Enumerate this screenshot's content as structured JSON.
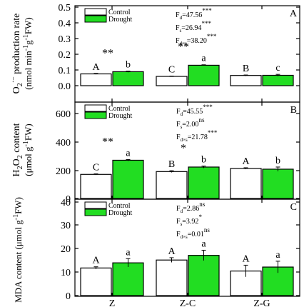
{
  "colors": {
    "control": "#ffffff",
    "drought": "#22dd22",
    "axis": "#000000"
  },
  "chart_data": [
    {
      "type": "bar",
      "panel_label": "A",
      "categories": [
        "Z",
        "Z-C",
        "Z-G"
      ],
      "ylim": [
        0,
        0.5
      ],
      "yticks": [
        "0.0",
        "0.1",
        "0.2",
        "0.3",
        "0.4",
        "0.5"
      ],
      "ylabel": [
        "O",
        "2",
        "·−",
        " production rate",
        "(nmol min",
        "-1",
        "g",
        "-1",
        "FW)"
      ],
      "series": [
        {
          "name": "Control",
          "values": [
            0.075,
            0.059,
            0.065
          ],
          "errors": [
            0.003,
            0.002,
            0.003
          ],
          "letters": [
            "A",
            "C",
            "B"
          ]
        },
        {
          "name": "Drought",
          "values": [
            0.089,
            0.13,
            0.066
          ],
          "errors": [
            0.004,
            0.003,
            0.006
          ],
          "letters": [
            "b",
            "a",
            "c"
          ]
        }
      ],
      "significance": [
        "**",
        "**",
        ""
      ],
      "stats": [
        {
          "sym": "F",
          "sub": "d",
          "val": "=47.56",
          "sig": "***"
        },
        {
          "sym": "F",
          "sub": "s",
          "val": "=26.94",
          "sig": "***"
        },
        {
          "sym": "F",
          "sub": "d×s",
          "val": "=38.20",
          "sig": "***"
        }
      ]
    },
    {
      "type": "bar",
      "panel_label": "B",
      "categories": [
        "Z",
        "Z-C",
        "Z-G"
      ],
      "ylim": [
        0,
        700
      ],
      "yticks": [
        "0",
        "200",
        "400",
        "600"
      ],
      "ylabel": [
        "H",
        "2",
        "O",
        "2",
        " content",
        "(μmol g",
        "-1",
        "FW)"
      ],
      "series": [
        {
          "name": "Control",
          "values": [
            170,
            190,
            212
          ],
          "errors": [
            4,
            6,
            5
          ],
          "letters": [
            "C",
            "B",
            "A"
          ]
        },
        {
          "name": "Drought",
          "values": [
            270,
            222,
            207
          ],
          "errors": [
            5,
            7,
            15
          ],
          "letters": [
            "a",
            "b",
            "b"
          ]
        }
      ],
      "significance": [
        "**",
        "*",
        ""
      ],
      "stats": [
        {
          "sym": "F",
          "sub": "d",
          "val": "=45.55",
          "sig": "***"
        },
        {
          "sym": "F",
          "sub": "s",
          "val": "=2.00",
          "sig": "ns"
        },
        {
          "sym": "F",
          "sub": "d×s",
          "val": "=21.78",
          "sig": "***"
        }
      ]
    },
    {
      "type": "bar",
      "panel_label": "C",
      "categories": [
        "Z",
        "Z-C",
        "Z-G"
      ],
      "ylim": [
        0,
        42
      ],
      "yticks": [
        "0",
        "10",
        "20",
        "30",
        "40"
      ],
      "ylabel": [
        "MDA content (μmol g",
        "-1",
        "FW)"
      ],
      "series": [
        {
          "name": "Control",
          "values": [
            11.8,
            15.2,
            10.5
          ],
          "errors": [
            0.5,
            1.0,
            2.5
          ],
          "letters": [
            "A",
            "A",
            "A"
          ]
        },
        {
          "name": "Drought",
          "values": [
            14.0,
            17.2,
            12.2
          ],
          "errors": [
            1.8,
            2.2,
            2.5
          ],
          "letters": [
            "a",
            "a",
            "a"
          ]
        }
      ],
      "significance": [
        "",
        "",
        ""
      ],
      "stats": [
        {
          "sym": "F",
          "sub": "d",
          "val": "=2.86",
          "sig": "ns"
        },
        {
          "sym": "F",
          "sub": "s",
          "val": "=3.92",
          "sig": "*"
        },
        {
          "sym": "F",
          "sub": "d×s",
          "val": "=0.01",
          "sig": "ns"
        }
      ]
    }
  ]
}
